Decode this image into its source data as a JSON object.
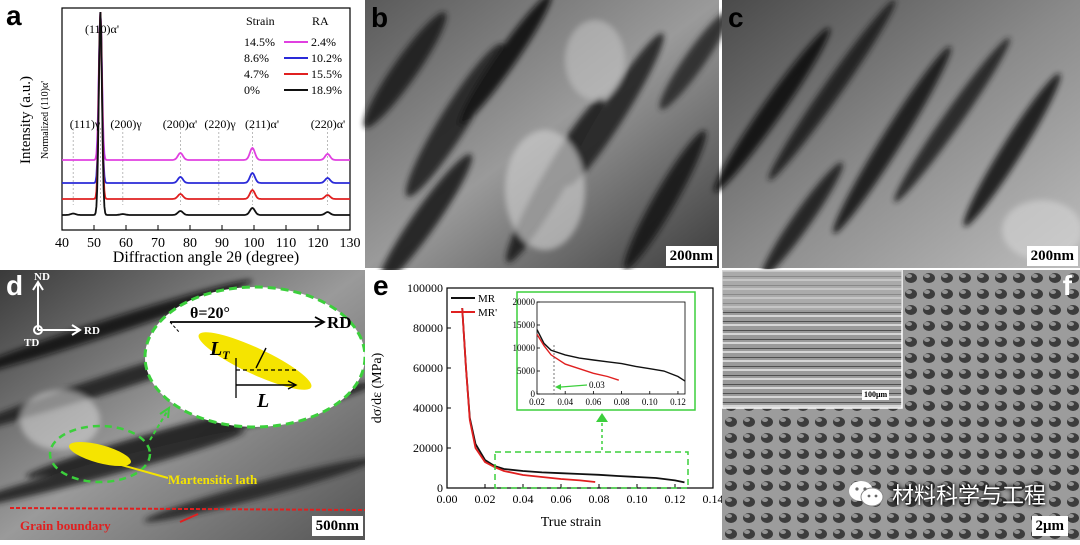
{
  "panels": {
    "a": {
      "label": "a",
      "xlabel": "Diffraction angle 2θ (degree)",
      "ylabel": "Intensity (a.u.)",
      "ylabel_sub": "Normalized (110)α'",
      "xticks": [
        "40",
        "50",
        "60",
        "70",
        "80",
        "90",
        "100",
        "110",
        "120",
        "130"
      ],
      "peaks": [
        "(111)γ",
        "(110)α'",
        "(200)γ",
        "(200)α'",
        "(220)γ",
        "(211)α'",
        "(220)α'"
      ],
      "legend_header_strain": "Strain",
      "legend_header_ra": "RA",
      "legend": [
        {
          "strain": "14.5%",
          "ra": "2.4%",
          "color": "#e040e0"
        },
        {
          "strain": "8.6%",
          "ra": "10.2%",
          "color": "#2a2ad8"
        },
        {
          "strain": "4.7%",
          "ra": "15.5%",
          "color": "#e02020"
        },
        {
          "strain": "0%",
          "ra": "18.9%",
          "color": "#111111"
        }
      ]
    },
    "b": {
      "label": "b",
      "scale": "200nm"
    },
    "c": {
      "label": "c",
      "scale": "200nm"
    },
    "d": {
      "label": "d",
      "axis_nd": "ND",
      "axis_rd": "RD",
      "axis_td": "TD",
      "theta": "θ=20°",
      "inset_rd": "RD",
      "lt": "L",
      "lt_sub": "T",
      "l": "L",
      "lath": "Martensitic lath",
      "gb": "Grain boundary",
      "scale": "500nm"
    },
    "e": {
      "label": "e",
      "ylabel": "dσ/dε (MPa)",
      "xlabel": "True strain",
      "yticks": [
        "0",
        "20000",
        "40000",
        "60000",
        "80000",
        "100000"
      ],
      "xticks": [
        "0.00",
        "0.02",
        "0.04",
        "0.06",
        "0.08",
        "0.10",
        "0.12",
        "0.14"
      ],
      "legend": [
        {
          "name": "MR",
          "color": "#111111"
        },
        {
          "name": "MR'",
          "color": "#e02020"
        }
      ],
      "inset_yticks": [
        "0",
        "5000",
        "10000",
        "15000",
        "20000"
      ],
      "inset_xticks": [
        "0.02",
        "0.04",
        "0.06",
        "0.08",
        "0.10",
        "0.12"
      ],
      "inset_annotation": "0.03"
    },
    "f": {
      "label": "f",
      "inset_scale": "100μm",
      "scale": "2μm"
    }
  },
  "watermark": "材料科学与工程",
  "chart_data": [
    {
      "type": "line",
      "title": "",
      "xlabel": "Diffraction angle 2θ (degree)",
      "ylabel": "Intensity (a.u.)",
      "xlim": [
        40,
        130
      ],
      "peak_positions": {
        "(111)γ": 43.5,
        "(110)α'": 52,
        "(200)γ": 59,
        "(200)α'": 77,
        "(220)γ": 89,
        "(211)α'": 99.5,
        "(220)α'": 123
      },
      "series": [
        {
          "name": "Strain 14.5%, RA 2.4%"
        },
        {
          "name": "Strain 8.6%, RA 10.2%"
        },
        {
          "name": "Strain 4.7%, RA 15.5%"
        },
        {
          "name": "Strain 0%, RA 18.9%"
        }
      ]
    },
    {
      "type": "line",
      "xlabel": "True strain",
      "ylabel": "dσ/dε (MPa)",
      "xlim": [
        0,
        0.14
      ],
      "ylim": [
        0,
        100000
      ],
      "series": [
        {
          "name": "MR",
          "x": [
            0.008,
            0.01,
            0.012,
            0.015,
            0.02,
            0.025,
            0.03,
            0.04,
            0.05,
            0.06,
            0.07,
            0.08,
            0.09,
            0.1,
            0.11,
            0.12,
            0.125
          ],
          "y": [
            90000,
            60000,
            35000,
            22000,
            14000,
            11000,
            9500,
            8500,
            7800,
            7400,
            7000,
            6600,
            6000,
            5500,
            5000,
            3800,
            2800
          ]
        },
        {
          "name": "MR'",
          "x": [
            0.008,
            0.01,
            0.012,
            0.015,
            0.02,
            0.025,
            0.03,
            0.04,
            0.05,
            0.06,
            0.07,
            0.078
          ],
          "y": [
            90000,
            60000,
            34000,
            20000,
            13000,
            10500,
            8500,
            6500,
            5500,
            4500,
            3800,
            3000
          ]
        }
      ],
      "inset": {
        "xlim": [
          0.02,
          0.125
        ],
        "ylim": [
          0,
          20000
        ],
        "annotation": "0.03"
      }
    }
  ]
}
